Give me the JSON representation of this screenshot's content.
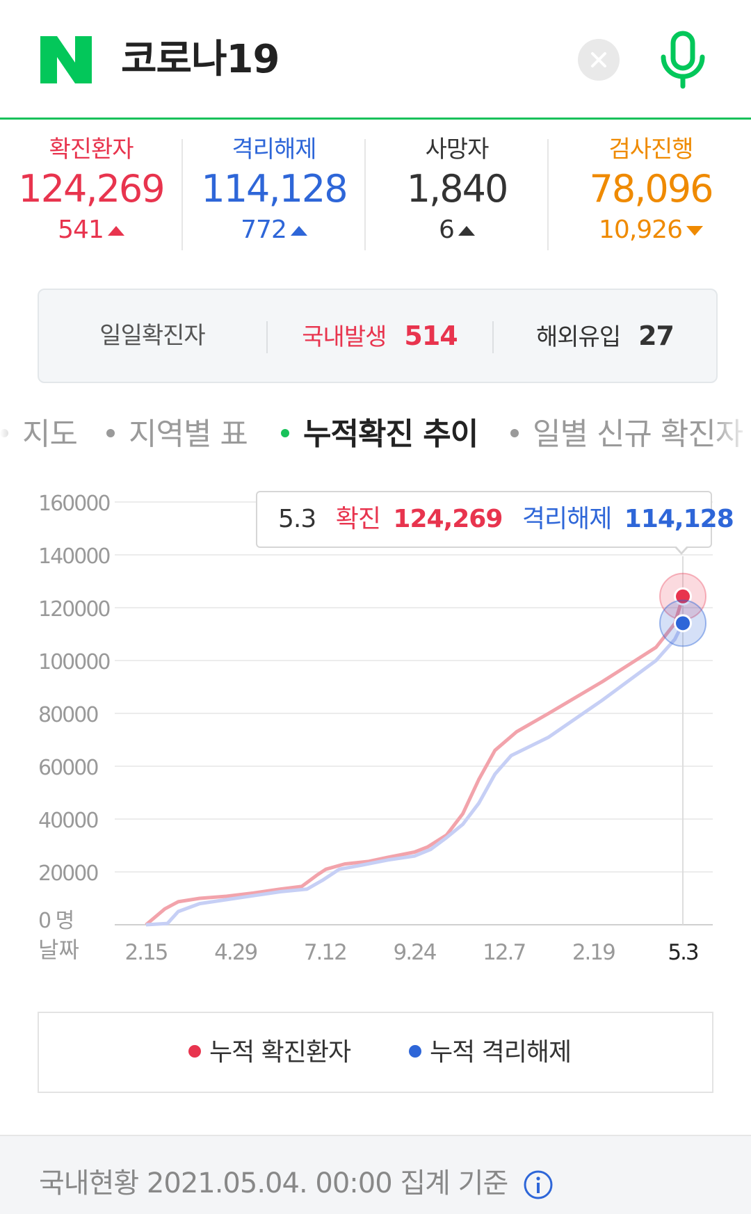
{
  "header": {
    "logo_letter": "N",
    "query": "코로나19",
    "brand_color": "#03c75a"
  },
  "stats": [
    {
      "label": "확진환자",
      "value": "124,269",
      "delta": "541",
      "direction": "up",
      "color": "#e8344e"
    },
    {
      "label": "격리해제",
      "value": "114,128",
      "delta": "772",
      "direction": "up",
      "color": "#2e66d8"
    },
    {
      "label": "사망자",
      "value": "1,840",
      "delta": "6",
      "direction": "up",
      "color": "#333333"
    },
    {
      "label": "검사진행",
      "value": "78,096",
      "delta": "10,926",
      "direction": "down",
      "color": "#ef8a00"
    }
  ],
  "daily": {
    "label": "일일확진자",
    "domestic_label": "국내발생",
    "domestic_value": "514",
    "overseas_label": "해외유입",
    "overseas_value": "27"
  },
  "tabs": [
    {
      "label": "지도",
      "active": false
    },
    {
      "label": "지역별 표",
      "active": false
    },
    {
      "label": "누적확진 추이",
      "active": true
    },
    {
      "label": "일별 신규 확진자",
      "active": false
    }
  ],
  "tooltip": {
    "date": "5.3",
    "confirmed_label": "확진",
    "confirmed_value": "124,269",
    "released_label": "격리해제",
    "released_value": "114,128"
  },
  "chart_data": {
    "type": "line",
    "xlabel": "날짜",
    "ylim": [
      0,
      160000
    ],
    "yticks": [
      "160000",
      "140000",
      "120000",
      "100000",
      "80000",
      "60000",
      "40000",
      "20000",
      "0 명"
    ],
    "xticks": [
      "2.15",
      "4.29",
      "7.12",
      "9.24",
      "12.7",
      "2.19",
      "5.3"
    ],
    "grid": true,
    "legend": "bottom",
    "series": [
      {
        "name": "누적 확진환자",
        "color": "#e8344e",
        "values": [
          [
            0,
            0
          ],
          [
            0.07,
            6000
          ],
          [
            0.12,
            8700
          ],
          [
            0.2,
            10000
          ],
          [
            0.3,
            10800
          ],
          [
            0.4,
            12000
          ],
          [
            0.5,
            13500
          ],
          [
            0.58,
            14500
          ],
          [
            0.64,
            19000
          ],
          [
            0.67,
            21000
          ],
          [
            0.74,
            23000
          ],
          [
            0.83,
            24000
          ],
          [
            0.9,
            25500
          ],
          [
            1.0,
            27500
          ],
          [
            1.05,
            29500
          ],
          [
            1.12,
            34000
          ],
          [
            1.18,
            42000
          ],
          [
            1.24,
            55000
          ],
          [
            1.3,
            66000
          ],
          [
            1.38,
            73000
          ],
          [
            1.5,
            80000
          ],
          [
            1.7,
            92000
          ],
          [
            1.9,
            105000
          ],
          [
            1.97,
            114000
          ],
          [
            2.0,
            124269
          ]
        ]
      },
      {
        "name": "누적 격리해제",
        "color": "#2e66d8",
        "values": [
          [
            0,
            0
          ],
          [
            0.08,
            500
          ],
          [
            0.12,
            5000
          ],
          [
            0.2,
            8000
          ],
          [
            0.3,
            9500
          ],
          [
            0.4,
            11000
          ],
          [
            0.5,
            12500
          ],
          [
            0.6,
            13500
          ],
          [
            0.66,
            17000
          ],
          [
            0.72,
            21000
          ],
          [
            0.8,
            22500
          ],
          [
            0.9,
            24500
          ],
          [
            1.0,
            26000
          ],
          [
            1.06,
            28500
          ],
          [
            1.12,
            33000
          ],
          [
            1.18,
            38000
          ],
          [
            1.24,
            46000
          ],
          [
            1.3,
            57000
          ],
          [
            1.36,
            64000
          ],
          [
            1.5,
            71000
          ],
          [
            1.7,
            85000
          ],
          [
            1.9,
            100000
          ],
          [
            1.97,
            108000
          ],
          [
            2.0,
            114128
          ]
        ]
      }
    ]
  },
  "legend": {
    "confirmed": "누적 확진환자",
    "released": "누적 격리해제"
  },
  "footer": {
    "text": "국내현황 2021.05.04. 00:00 집계 기준"
  }
}
